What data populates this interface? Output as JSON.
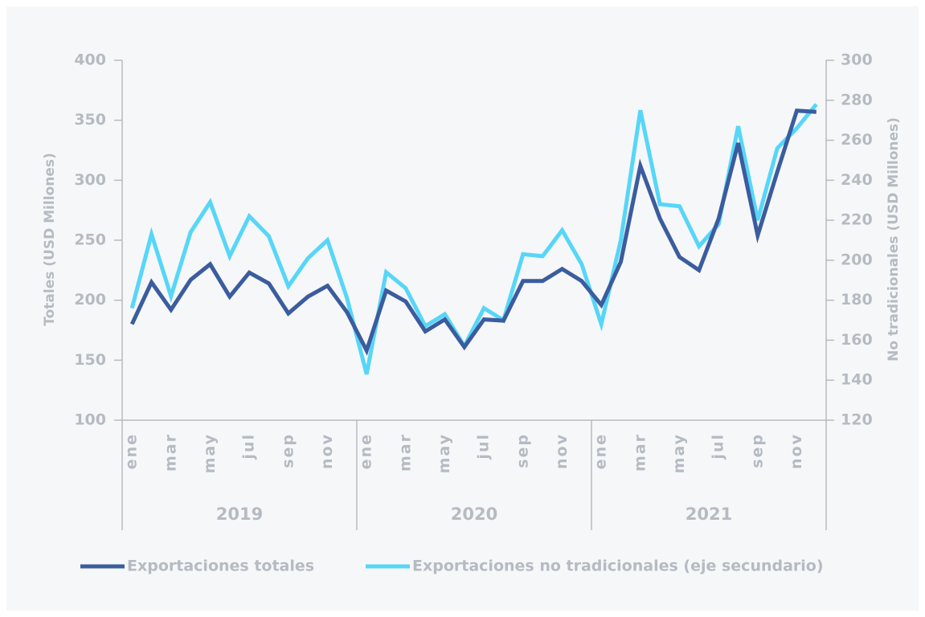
{
  "chart_data": {
    "type": "line",
    "categories": [
      "ene",
      null,
      "mar",
      null,
      "may",
      null,
      "jul",
      null,
      "sep",
      null,
      "nov",
      null,
      "ene",
      null,
      "mar",
      null,
      "may",
      null,
      "jul",
      null,
      "sep",
      null,
      "nov",
      null,
      "ene",
      null,
      "mar",
      null,
      "may",
      null,
      "jul",
      null,
      "sep",
      null,
      "nov",
      null
    ],
    "year_groups": [
      "2019",
      "2020",
      "2021"
    ],
    "y_label": "Totales (USD Millones)",
    "y2_label": "No tradicionales  (USD Millones)",
    "ylim": [
      100,
      400
    ],
    "yticks": [
      100,
      150,
      200,
      250,
      300,
      350,
      400
    ],
    "y2lim": [
      120,
      300
    ],
    "y2ticks": [
      120,
      140,
      160,
      180,
      200,
      220,
      240,
      260,
      280,
      300
    ],
    "series": [
      {
        "name": "Exportaciones totales",
        "color": "#3b5c9e",
        "axis": "y",
        "values": [
          180,
          215,
          192,
          217,
          230,
          203,
          223,
          214,
          189,
          203,
          212,
          190,
          158,
          208,
          199,
          174,
          184,
          161,
          184,
          183,
          216,
          216,
          226,
          216,
          196,
          232,
          312,
          268,
          236,
          225,
          268,
          331,
          254,
          307,
          358,
          357
        ]
      },
      {
        "name": "Exportaciones no tradicionales (eje secundario)",
        "color": "#57d6f8",
        "axis": "y2",
        "values": [
          176,
          213,
          182,
          214,
          229,
          202,
          222,
          212,
          187,
          201,
          210,
          181,
          143,
          194,
          186,
          167,
          173,
          157,
          176,
          170,
          203,
          202,
          215,
          198,
          168,
          210,
          275,
          228,
          227,
          207,
          218,
          267,
          220,
          256,
          266,
          278
        ]
      }
    ]
  }
}
